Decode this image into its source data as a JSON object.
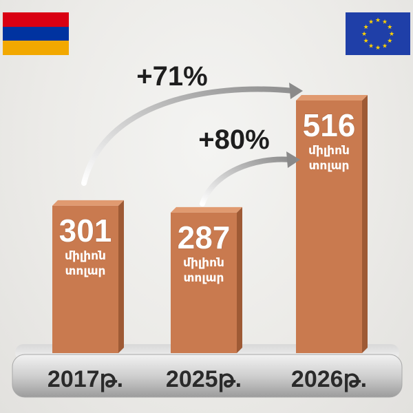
{
  "chart_data": {
    "type": "bar",
    "categories": [
      "2017թ.",
      "2025թ.",
      "2026թ."
    ],
    "values": [
      301,
      287,
      516
    ],
    "value_unit": "միլիոն տոլար",
    "unit_lines": [
      "միլիոն",
      "տոլար"
    ],
    "annotations": [
      {
        "text": "+71%",
        "from": "2017թ.",
        "to": "2026թ."
      },
      {
        "text": "+80%",
        "from": "2025թ.",
        "to": "2026թ."
      }
    ],
    "bar_color": "#c97a4f",
    "ylim": [
      0,
      600
    ],
    "title": "",
    "xlabel": "",
    "ylabel": "",
    "grid": false
  },
  "flags": [
    {
      "name": "armenia-flag",
      "colors": [
        "#d90012",
        "#0033a0",
        "#f2a800"
      ]
    },
    {
      "name": "eu-flag",
      "colors": [
        "#1f3fa8",
        "#ffd200"
      ]
    }
  ]
}
